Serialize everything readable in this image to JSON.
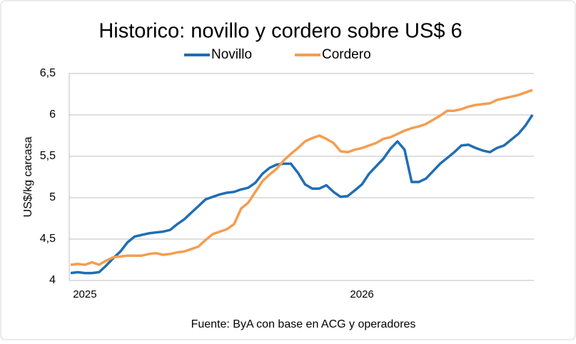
{
  "chart_data": {
    "type": "line",
    "title": "Historico: novillo y cordero sobre US$ 6",
    "y_label": "US$/kg carcasa",
    "source": "Fuente: ByA con base en ACG y operadores",
    "categories": [
      null,
      null,
      "2025",
      null,
      null,
      null,
      null,
      null,
      null,
      null,
      null,
      null,
      null,
      null,
      null,
      null,
      null,
      null,
      null,
      null,
      null,
      null,
      null,
      null,
      null,
      null,
      null,
      null,
      null,
      null,
      null,
      null,
      null,
      null,
      null,
      null,
      null,
      null,
      null,
      null,
      null,
      "2026",
      null,
      null,
      null,
      null,
      null,
      null,
      null,
      null,
      null,
      null,
      null,
      null,
      null,
      null,
      null,
      null,
      null,
      null,
      null,
      null,
      null,
      null,
      null,
      null
    ],
    "series": [
      {
        "name": "Novillo",
        "color": "#1f6eb4",
        "values": [
          4.09,
          4.1,
          4.09,
          4.09,
          4.1,
          4.18,
          4.27,
          4.35,
          4.46,
          4.53,
          4.55,
          4.57,
          4.58,
          4.59,
          4.61,
          4.68,
          4.74,
          4.82,
          4.9,
          4.98,
          5.01,
          5.04,
          5.06,
          5.07,
          5.1,
          5.12,
          5.18,
          5.29,
          5.36,
          5.4,
          5.41,
          5.41,
          5.3,
          5.16,
          5.11,
          5.11,
          5.15,
          5.07,
          5.01,
          5.02,
          5.09,
          5.16,
          5.29,
          5.38,
          5.47,
          5.59,
          5.68,
          5.58,
          5.19,
          5.19,
          5.23,
          5.32,
          5.41,
          5.48,
          5.55,
          5.63,
          5.64,
          5.6,
          5.57,
          5.55,
          5.6,
          5.63,
          5.7,
          5.77,
          5.87,
          6.0
        ]
      },
      {
        "name": "Cordero",
        "color": "#f59d4f",
        "values": [
          4.19,
          4.2,
          4.19,
          4.22,
          4.19,
          4.24,
          4.28,
          4.29,
          4.3,
          4.3,
          4.3,
          4.32,
          4.33,
          4.31,
          4.32,
          4.34,
          4.35,
          4.38,
          4.41,
          4.49,
          4.56,
          4.59,
          4.62,
          4.68,
          4.87,
          4.94,
          5.07,
          5.2,
          5.28,
          5.35,
          5.45,
          5.53,
          5.6,
          5.68,
          5.72,
          5.75,
          5.71,
          5.66,
          5.56,
          5.55,
          5.58,
          5.6,
          5.63,
          5.66,
          5.71,
          5.73,
          5.77,
          5.81,
          5.84,
          5.86,
          5.89,
          5.94,
          5.99,
          6.05,
          6.05,
          6.07,
          6.1,
          6.12,
          6.13,
          6.14,
          6.18,
          6.2,
          6.22,
          6.24,
          6.27,
          6.3
        ]
      }
    ],
    "ylim": [
      4,
      6.5
    ],
    "yticks": [
      4,
      {
        "value": 4.5,
        "label": "4,5"
      },
      5,
      {
        "value": 5.5,
        "label": "5,5"
      },
      6,
      {
        "value": 6.5,
        "label": "6,5"
      }
    ],
    "grid": true,
    "legend": "top"
  }
}
